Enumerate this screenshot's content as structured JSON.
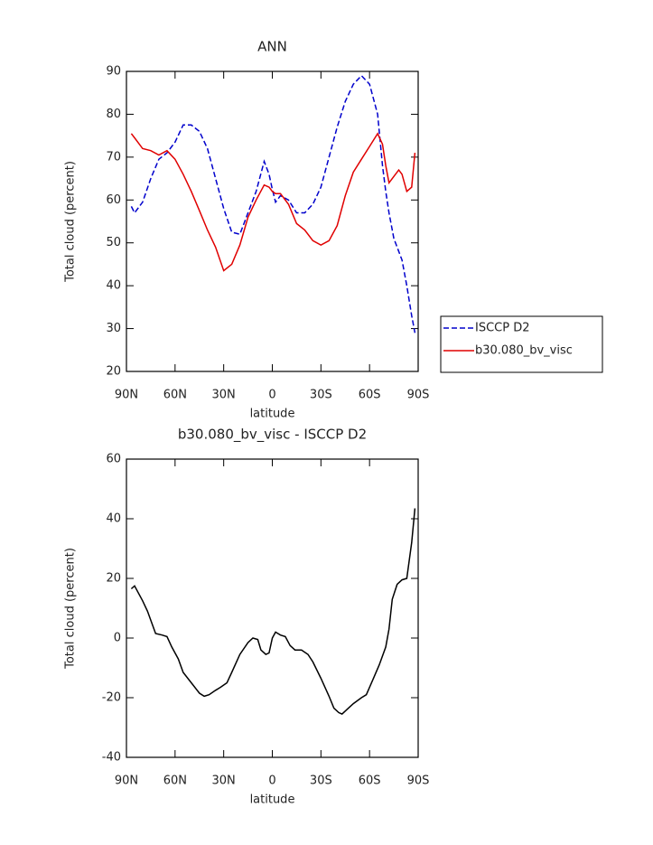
{
  "chart_data": [
    {
      "type": "line",
      "title": "ANN",
      "xlabel": "latitude",
      "ylabel": "Total cloud (percent)",
      "x": [
        87,
        85,
        80,
        75,
        70,
        65,
        60,
        55,
        50,
        45,
        40,
        35,
        30,
        25,
        20,
        15,
        10,
        5,
        2,
        0,
        -2,
        -5,
        -10,
        -15,
        -20,
        -25,
        -30,
        -35,
        -40,
        -45,
        -50,
        -55,
        -60,
        -65,
        -68,
        -70,
        -72,
        -75,
        -78,
        -80,
        -83,
        -86,
        -88
      ],
      "series": [
        {
          "name": "ISCCP D2",
          "color": "#0000cc",
          "dash": "dashed",
          "values": [
            58.5,
            57,
            59.5,
            65,
            69.5,
            71,
            73.5,
            77.5,
            77.5,
            76,
            72,
            65,
            58,
            52.5,
            52,
            57,
            62,
            69,
            66,
            62.5,
            59.5,
            61,
            60,
            57,
            57,
            59,
            63,
            70,
            77,
            83,
            87,
            89,
            87,
            80,
            68,
            62,
            57,
            51,
            48,
            46,
            40,
            33,
            29
          ]
        },
        {
          "name": "b30.080_bv_visc",
          "color": "#e00000",
          "dash": "solid",
          "values": [
            75.5,
            74.5,
            72,
            71.5,
            70.5,
            71.5,
            69.5,
            66,
            62,
            57.5,
            53,
            49,
            43.5,
            45,
            49.5,
            56,
            60,
            63.5,
            63,
            62,
            61.5,
            61.5,
            59,
            54.5,
            53,
            50.5,
            49.5,
            50.5,
            54,
            61,
            66.5,
            69.5,
            72.5,
            75.5,
            73,
            68,
            64,
            65.5,
            67,
            66,
            62,
            63,
            71
          ]
        }
      ],
      "xlim": [
        90,
        -90
      ],
      "xticks": [
        {
          "value": 90,
          "label": "90N"
        },
        {
          "value": 60,
          "label": "60N"
        },
        {
          "value": 30,
          "label": "30N"
        },
        0,
        {
          "value": -30,
          "label": "30S"
        },
        {
          "value": -60,
          "label": "60S"
        },
        {
          "value": -90,
          "label": "90S"
        }
      ],
      "ylim": [
        20,
        90
      ],
      "yticks": [
        20,
        30,
        40,
        50,
        60,
        70,
        80,
        90
      ]
    },
    {
      "type": "line",
      "title": "b30.080_bv_visc - ISCCP D2",
      "xlabel": "latitude",
      "ylabel": "Total cloud (percent)",
      "x": [
        87,
        85,
        80,
        77,
        74,
        72,
        68,
        65,
        62,
        58,
        55,
        50,
        45,
        42,
        39,
        35,
        32,
        28,
        25,
        20,
        15,
        12,
        9,
        7,
        4,
        2,
        0,
        -2,
        -5,
        -8,
        -11,
        -14,
        -18,
        -22,
        -25,
        -30,
        -35,
        -38,
        -41,
        -43,
        -46,
        -50,
        -55,
        -58,
        -62,
        -66,
        -70,
        -72,
        -74,
        -77,
        -80,
        -83,
        -86,
        -88
      ],
      "series": [
        {
          "name": null,
          "color": "#000000",
          "dash": "solid",
          "values": [
            16.5,
            17.5,
            12.5,
            9,
            4.5,
            1.5,
            1,
            0.5,
            -3,
            -7,
            -11.5,
            -15,
            -18.5,
            -19.5,
            -19,
            -17.5,
            -16.5,
            -15,
            -11.5,
            -5.5,
            -1.5,
            0,
            -0.5,
            -4,
            -5.5,
            -5,
            0,
            2,
            1,
            0.5,
            -2.5,
            -4,
            -4,
            -5.5,
            -8,
            -13.5,
            -19.5,
            -23.5,
            -25,
            -25.5,
            -24,
            -22,
            -20,
            -19,
            -14,
            -9,
            -3,
            3,
            13,
            18,
            19.5,
            20,
            32,
            43.5
          ]
        }
      ],
      "xlim": [
        90,
        -90
      ],
      "xticks": [
        {
          "value": 90,
          "label": "90N"
        },
        {
          "value": 60,
          "label": "60N"
        },
        {
          "value": 30,
          "label": "30N"
        },
        0,
        {
          "value": -30,
          "label": "30S"
        },
        {
          "value": -60,
          "label": "60S"
        },
        {
          "value": -90,
          "label": "90S"
        }
      ],
      "ylim": [
        -40,
        60
      ],
      "yticks": [
        -40,
        -20,
        0,
        20,
        40,
        60
      ]
    }
  ]
}
